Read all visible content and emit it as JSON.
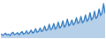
{
  "chart_data": {
    "type": "area",
    "categories": [
      null,
      null,
      null,
      null,
      null,
      null,
      null,
      null,
      null,
      null,
      null,
      null,
      null,
      null,
      null,
      null,
      null,
      null,
      null,
      null,
      null,
      null,
      null,
      null,
      null,
      null,
      null,
      null,
      null,
      null,
      null,
      null,
      null,
      null,
      null,
      null,
      null,
      null,
      null,
      null,
      null,
      null,
      null,
      null,
      null,
      null,
      null,
      null,
      null,
      null,
      null,
      null,
      null,
      null,
      null,
      null,
      null,
      null,
      null,
      null,
      null,
      null,
      null,
      null,
      null,
      null,
      null,
      null,
      null,
      null
    ],
    "values": [
      12,
      8,
      10,
      14,
      9,
      11,
      7,
      13,
      16,
      10,
      12,
      15,
      9,
      14,
      18,
      11,
      13,
      20,
      12,
      15,
      22,
      14,
      17,
      26,
      16,
      19,
      28,
      18,
      22,
      33,
      21,
      24,
      38,
      23,
      27,
      40,
      25,
      30,
      44,
      28,
      33,
      48,
      30,
      36,
      52,
      34,
      39,
      50,
      36,
      42,
      56,
      40,
      45,
      60,
      42,
      48,
      64,
      46,
      52,
      70,
      50,
      56,
      74,
      54,
      60,
      80,
      62,
      70,
      95,
      68
    ],
    "color": "#2f79c0",
    "ylim": [
      0,
      100
    ],
    "tick_labels": false
  }
}
